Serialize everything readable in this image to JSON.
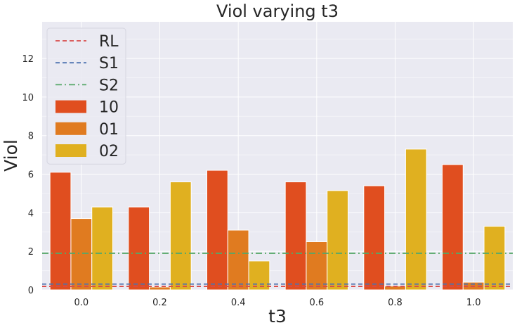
{
  "chart_data": {
    "type": "bar",
    "title": "Viol varying t3",
    "xlabel": "t3",
    "ylabel": "Viol",
    "categories": [
      "0.0",
      "0.2",
      "0.4",
      "0.6",
      "0.8",
      "1.0"
    ],
    "ylim": [
      0,
      13.9
    ],
    "yticks": [
      0,
      2,
      4,
      6,
      8,
      10,
      12
    ],
    "grid": true,
    "legend_position": "top-left",
    "series": [
      {
        "name": "10",
        "color": "#e04e1f",
        "values": [
          6.1,
          4.3,
          6.2,
          5.6,
          5.4,
          6.5
        ]
      },
      {
        "name": "01",
        "color": "#e07b20",
        "values": [
          3.7,
          0.15,
          3.1,
          2.5,
          0.2,
          0.4
        ]
      },
      {
        "name": "02",
        "color": "#e0b020",
        "values": [
          4.3,
          5.6,
          1.5,
          5.15,
          7.3,
          3.3
        ]
      }
    ],
    "reference_lines": [
      {
        "name": "RL",
        "value": 0.18,
        "color": "#d84a4a",
        "style": "dashed"
      },
      {
        "name": "S1",
        "value": 0.3,
        "color": "#4c72b0",
        "style": "dashed"
      },
      {
        "name": "S2",
        "value": 1.9,
        "color": "#55a868",
        "style": "dashdot"
      }
    ]
  }
}
